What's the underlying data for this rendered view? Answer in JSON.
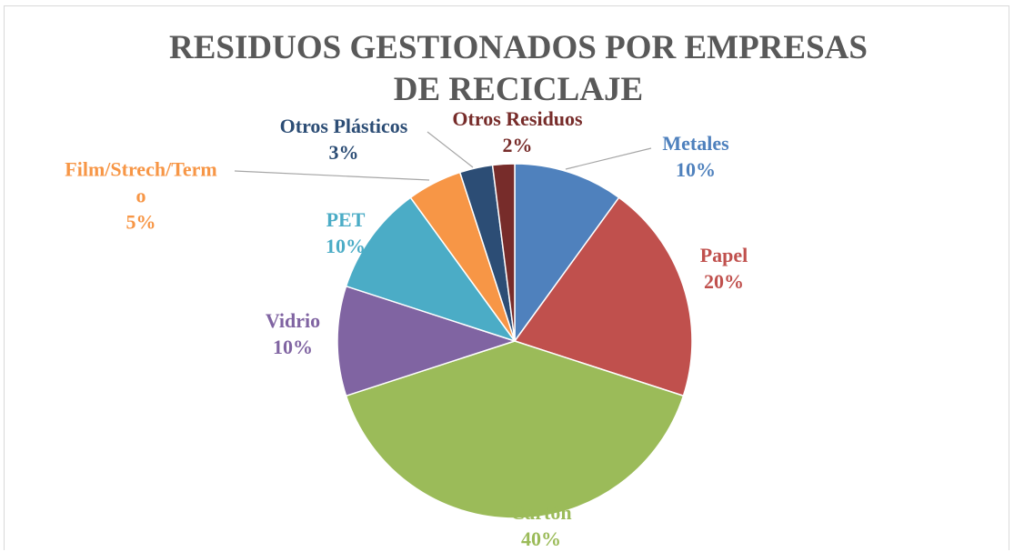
{
  "chart_data": {
    "type": "pie",
    "title": "RESIDUOS GESTIONADOS POR EMPRESAS DE RECICLAJE",
    "categories": [
      "Metales",
      "Papel",
      "Cartón",
      "Vidrio",
      "PET",
      "Film/Strech/Termo",
      "Otros Plásticos",
      "Otros Residuos"
    ],
    "values": [
      10,
      20,
      40,
      10,
      10,
      5,
      3,
      2
    ],
    "value_labels": [
      "10%",
      "20%",
      "40%",
      "10%",
      "10%",
      "5%",
      "3%",
      "2%"
    ],
    "colors": [
      "#4f81bd",
      "#c0504d",
      "#9bbb59",
      "#8064a2",
      "#4bacc6",
      "#f79646",
      "#2c4d75",
      "#772c2a"
    ]
  }
}
